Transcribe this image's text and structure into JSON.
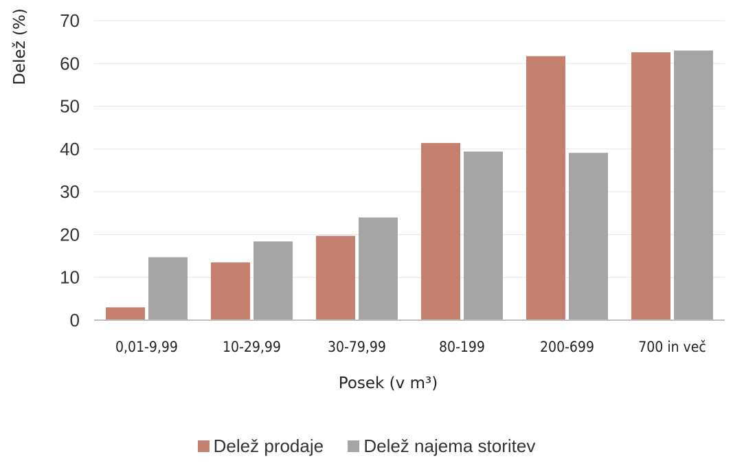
{
  "chart_data": {
    "type": "bar",
    "categories": [
      "0,01-9,99",
      "10-29,99",
      "30-79,99",
      "80-199",
      "200-699",
      "700 in več"
    ],
    "series": [
      {
        "name": "Delež prodaje",
        "values": [
          3.0,
          13.5,
          19.7,
          41.4,
          61.7,
          62.6
        ],
        "color": "#c5806f"
      },
      {
        "name": "Delež najema storitev",
        "values": [
          14.7,
          18.4,
          24.0,
          39.4,
          39.1,
          63.0
        ],
        "color": "#a5a5a5"
      }
    ],
    "xlabel": "Posek (v m³)",
    "ylabel": "Delež (%)",
    "ylim": [
      0,
      70
    ],
    "yticks": [
      0,
      10,
      20,
      30,
      40,
      50,
      60,
      70
    ],
    "grid": true,
    "legend_position": "bottom"
  }
}
